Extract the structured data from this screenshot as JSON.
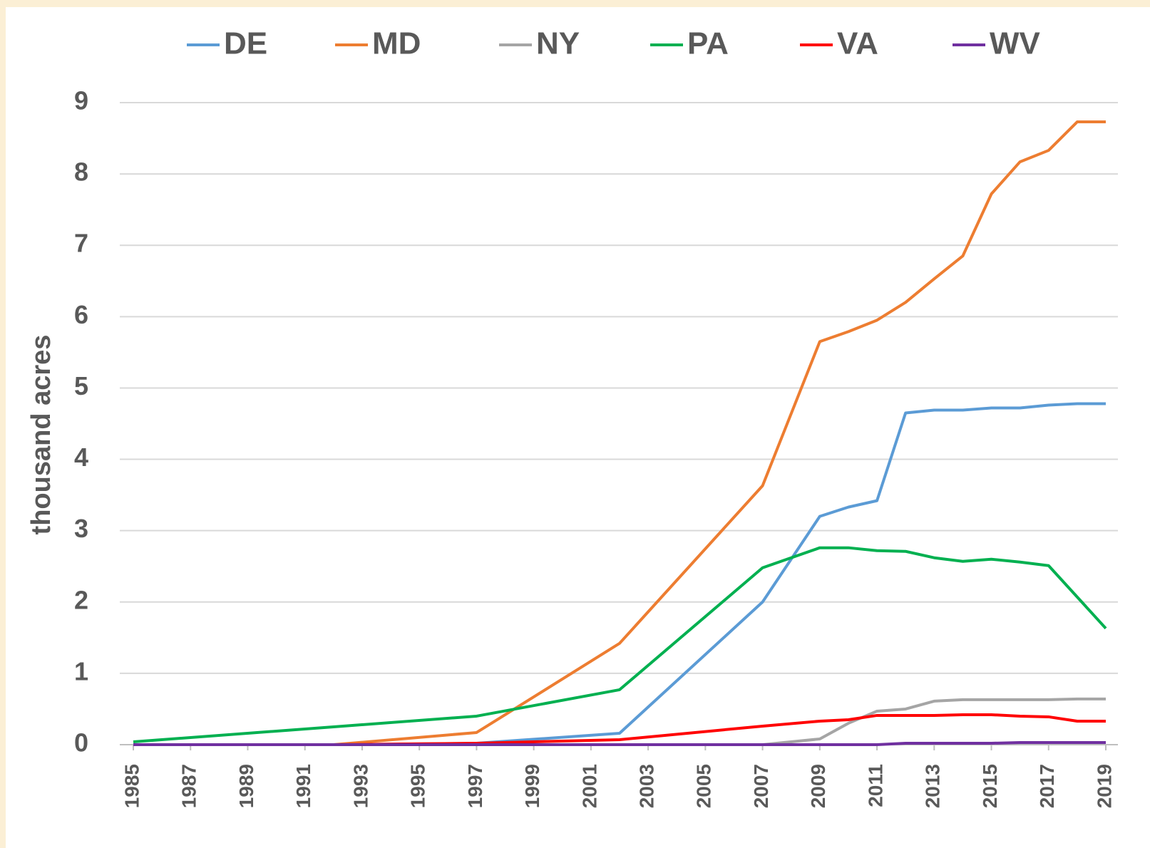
{
  "chart_data": {
    "type": "line",
    "y_label": "thousand acres",
    "x": [
      1985,
      1992,
      1997,
      2002,
      2007,
      2009,
      2010,
      2011,
      2012,
      2013,
      2014,
      2015,
      2016,
      2017,
      2018,
      2019
    ],
    "xlim": [
      1985,
      2019
    ],
    "xticks": [
      1985,
      1987,
      1989,
      1991,
      1993,
      1995,
      1997,
      1999,
      2001,
      2003,
      2005,
      2007,
      2009,
      2011,
      2013,
      2015,
      2017,
      2019
    ],
    "ylim": [
      0,
      9
    ],
    "yticks": [
      0,
      1,
      2,
      3,
      4,
      5,
      6,
      7,
      8,
      9
    ],
    "grid": true,
    "legend": "top",
    "series": [
      {
        "name": "DE",
        "color": "#5b9bd5",
        "values": [
          0,
          0,
          0.02,
          0.16,
          2.0,
          3.2,
          3.33,
          3.42,
          4.65,
          4.69,
          4.69,
          4.72,
          4.72,
          4.76,
          4.78,
          4.78
        ]
      },
      {
        "name": "MD",
        "color": "#ed7d31",
        "values": [
          0,
          0,
          0.17,
          1.42,
          3.63,
          5.65,
          5.79,
          5.95,
          6.2,
          6.53,
          6.85,
          7.72,
          8.17,
          8.33,
          8.73,
          8.73
        ]
      },
      {
        "name": "NY",
        "color": "#a5a5a5",
        "values": [
          0,
          0,
          0,
          0,
          0,
          0.08,
          0.3,
          0.47,
          0.5,
          0.61,
          0.63,
          0.63,
          0.63,
          0.63,
          0.64,
          0.64
        ]
      },
      {
        "name": "PA",
        "color": "#00b050",
        "values": [
          0.04,
          0.25,
          0.4,
          0.77,
          2.48,
          2.76,
          2.76,
          2.72,
          2.71,
          2.62,
          2.57,
          2.6,
          2.56,
          2.51,
          2.07,
          1.63
        ]
      },
      {
        "name": "VA",
        "color": "#ff0000",
        "values": [
          0,
          0,
          0.02,
          0.07,
          0.26,
          0.33,
          0.35,
          0.41,
          0.41,
          0.41,
          0.42,
          0.42,
          0.4,
          0.39,
          0.33,
          0.33
        ]
      },
      {
        "name": "WV",
        "color": "#7030a0",
        "values": [
          0,
          0,
          0,
          0,
          0,
          0,
          0,
          0,
          0.02,
          0.02,
          0.02,
          0.02,
          0.03,
          0.03,
          0.03,
          0.03
        ]
      }
    ]
  }
}
